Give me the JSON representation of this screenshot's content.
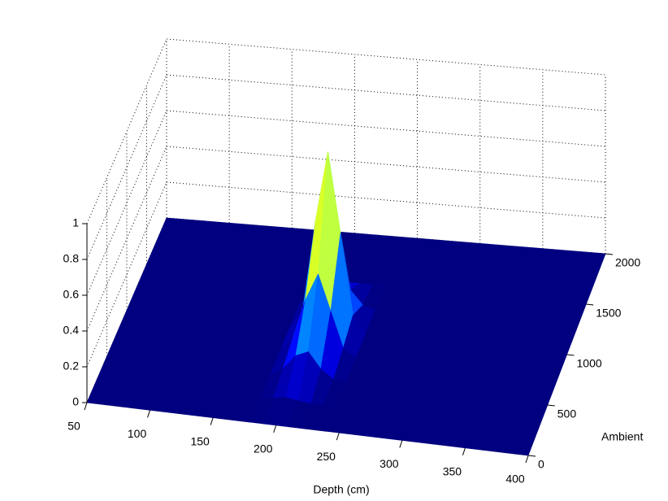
{
  "chart_data": {
    "type": "surface",
    "xlabel": "Depth (cm)",
    "ylabel": "Ambient",
    "xlim": [
      50,
      400
    ],
    "xticks": [
      50,
      100,
      150,
      200,
      250,
      300,
      350,
      400
    ],
    "ylim": [
      0,
      2000
    ],
    "yticks": [
      0,
      500,
      1000,
      1500,
      2000
    ],
    "zlim": [
      0,
      1
    ],
    "zticks": [
      0,
      0.2,
      0.4,
      0.6,
      0.8,
      1
    ],
    "grid": true,
    "colormap": "jet",
    "x": [
      50,
      180,
      190,
      200,
      210,
      220,
      230,
      240,
      400
    ],
    "y": [
      0,
      250,
      500,
      750,
      1000,
      1250,
      1500,
      1750,
      2000
    ],
    "z": [
      [
        0,
        0,
        0,
        0,
        0,
        0,
        0,
        0,
        0
      ],
      [
        0,
        0,
        0.01,
        0.02,
        0.01,
        0,
        0,
        0,
        0
      ],
      [
        0,
        0,
        0.04,
        0.12,
        0.15,
        0.06,
        0.01,
        0,
        0
      ],
      [
        0,
        0,
        0.08,
        0.3,
        0.45,
        0.25,
        0.05,
        0,
        0
      ],
      [
        0,
        0,
        0.1,
        0.6,
        1,
        0.55,
        0.1,
        0,
        0
      ],
      [
        0,
        0,
        0.02,
        0.1,
        0.2,
        0.1,
        0.02,
        0,
        0
      ],
      [
        0,
        0,
        0,
        0,
        0,
        0,
        0,
        0,
        0
      ],
      [
        0,
        0,
        0,
        0,
        0,
        0,
        0,
        0,
        0
      ],
      [
        0,
        0,
        0,
        0,
        0,
        0,
        0,
        0,
        0
      ]
    ]
  }
}
